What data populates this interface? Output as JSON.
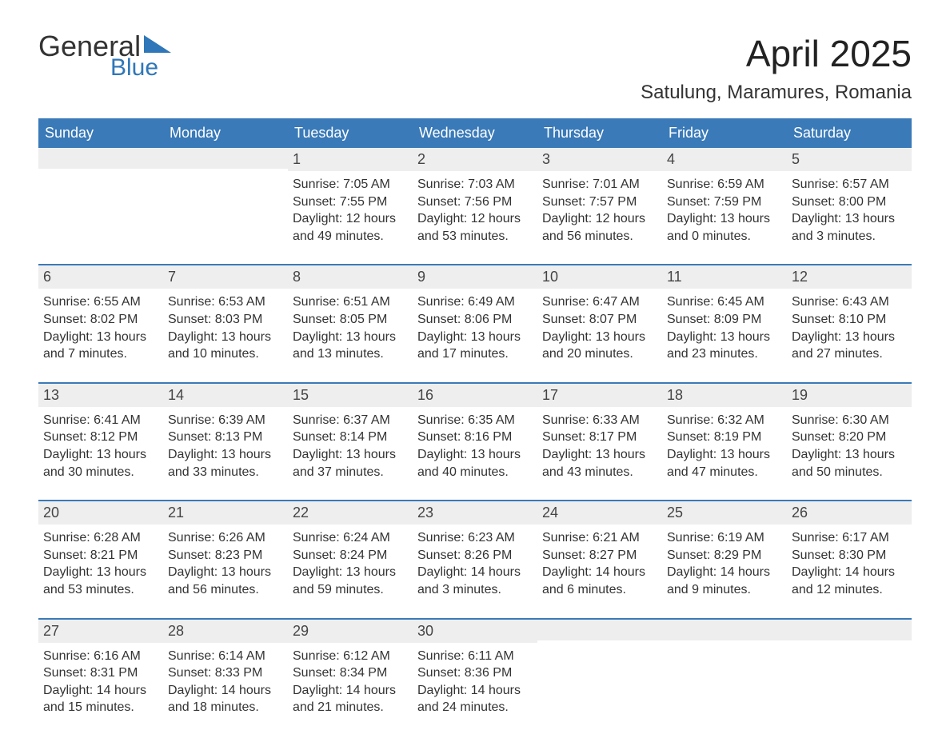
{
  "logo": {
    "general": "General",
    "blue": "Blue",
    "accent_color": "#2f77b8"
  },
  "title": "April 2025",
  "location": "Satulung, Maramures, Romania",
  "header_bg": "#3a7ab8",
  "header_text": "#ffffff",
  "row_rule_color": "#3a7ab8",
  "date_bar_bg": "#eeeeee",
  "body_bg": "#ffffff",
  "text_color": "#333333",
  "day_names": [
    "Sunday",
    "Monday",
    "Tuesday",
    "Wednesday",
    "Thursday",
    "Friday",
    "Saturday"
  ],
  "weeks": [
    [
      {
        "date": "",
        "sunrise": "",
        "sunset": "",
        "daylight": ""
      },
      {
        "date": "",
        "sunrise": "",
        "sunset": "",
        "daylight": ""
      },
      {
        "date": "1",
        "sunrise": "Sunrise: 7:05 AM",
        "sunset": "Sunset: 7:55 PM",
        "daylight": "Daylight: 12 hours and 49 minutes."
      },
      {
        "date": "2",
        "sunrise": "Sunrise: 7:03 AM",
        "sunset": "Sunset: 7:56 PM",
        "daylight": "Daylight: 12 hours and 53 minutes."
      },
      {
        "date": "3",
        "sunrise": "Sunrise: 7:01 AM",
        "sunset": "Sunset: 7:57 PM",
        "daylight": "Daylight: 12 hours and 56 minutes."
      },
      {
        "date": "4",
        "sunrise": "Sunrise: 6:59 AM",
        "sunset": "Sunset: 7:59 PM",
        "daylight": "Daylight: 13 hours and 0 minutes."
      },
      {
        "date": "5",
        "sunrise": "Sunrise: 6:57 AM",
        "sunset": "Sunset: 8:00 PM",
        "daylight": "Daylight: 13 hours and 3 minutes."
      }
    ],
    [
      {
        "date": "6",
        "sunrise": "Sunrise: 6:55 AM",
        "sunset": "Sunset: 8:02 PM",
        "daylight": "Daylight: 13 hours and 7 minutes."
      },
      {
        "date": "7",
        "sunrise": "Sunrise: 6:53 AM",
        "sunset": "Sunset: 8:03 PM",
        "daylight": "Daylight: 13 hours and 10 minutes."
      },
      {
        "date": "8",
        "sunrise": "Sunrise: 6:51 AM",
        "sunset": "Sunset: 8:05 PM",
        "daylight": "Daylight: 13 hours and 13 minutes."
      },
      {
        "date": "9",
        "sunrise": "Sunrise: 6:49 AM",
        "sunset": "Sunset: 8:06 PM",
        "daylight": "Daylight: 13 hours and 17 minutes."
      },
      {
        "date": "10",
        "sunrise": "Sunrise: 6:47 AM",
        "sunset": "Sunset: 8:07 PM",
        "daylight": "Daylight: 13 hours and 20 minutes."
      },
      {
        "date": "11",
        "sunrise": "Sunrise: 6:45 AM",
        "sunset": "Sunset: 8:09 PM",
        "daylight": "Daylight: 13 hours and 23 minutes."
      },
      {
        "date": "12",
        "sunrise": "Sunrise: 6:43 AM",
        "sunset": "Sunset: 8:10 PM",
        "daylight": "Daylight: 13 hours and 27 minutes."
      }
    ],
    [
      {
        "date": "13",
        "sunrise": "Sunrise: 6:41 AM",
        "sunset": "Sunset: 8:12 PM",
        "daylight": "Daylight: 13 hours and 30 minutes."
      },
      {
        "date": "14",
        "sunrise": "Sunrise: 6:39 AM",
        "sunset": "Sunset: 8:13 PM",
        "daylight": "Daylight: 13 hours and 33 minutes."
      },
      {
        "date": "15",
        "sunrise": "Sunrise: 6:37 AM",
        "sunset": "Sunset: 8:14 PM",
        "daylight": "Daylight: 13 hours and 37 minutes."
      },
      {
        "date": "16",
        "sunrise": "Sunrise: 6:35 AM",
        "sunset": "Sunset: 8:16 PM",
        "daylight": "Daylight: 13 hours and 40 minutes."
      },
      {
        "date": "17",
        "sunrise": "Sunrise: 6:33 AM",
        "sunset": "Sunset: 8:17 PM",
        "daylight": "Daylight: 13 hours and 43 minutes."
      },
      {
        "date": "18",
        "sunrise": "Sunrise: 6:32 AM",
        "sunset": "Sunset: 8:19 PM",
        "daylight": "Daylight: 13 hours and 47 minutes."
      },
      {
        "date": "19",
        "sunrise": "Sunrise: 6:30 AM",
        "sunset": "Sunset: 8:20 PM",
        "daylight": "Daylight: 13 hours and 50 minutes."
      }
    ],
    [
      {
        "date": "20",
        "sunrise": "Sunrise: 6:28 AM",
        "sunset": "Sunset: 8:21 PM",
        "daylight": "Daylight: 13 hours and 53 minutes."
      },
      {
        "date": "21",
        "sunrise": "Sunrise: 6:26 AM",
        "sunset": "Sunset: 8:23 PM",
        "daylight": "Daylight: 13 hours and 56 minutes."
      },
      {
        "date": "22",
        "sunrise": "Sunrise: 6:24 AM",
        "sunset": "Sunset: 8:24 PM",
        "daylight": "Daylight: 13 hours and 59 minutes."
      },
      {
        "date": "23",
        "sunrise": "Sunrise: 6:23 AM",
        "sunset": "Sunset: 8:26 PM",
        "daylight": "Daylight: 14 hours and 3 minutes."
      },
      {
        "date": "24",
        "sunrise": "Sunrise: 6:21 AM",
        "sunset": "Sunset: 8:27 PM",
        "daylight": "Daylight: 14 hours and 6 minutes."
      },
      {
        "date": "25",
        "sunrise": "Sunrise: 6:19 AM",
        "sunset": "Sunset: 8:29 PM",
        "daylight": "Daylight: 14 hours and 9 minutes."
      },
      {
        "date": "26",
        "sunrise": "Sunrise: 6:17 AM",
        "sunset": "Sunset: 8:30 PM",
        "daylight": "Daylight: 14 hours and 12 minutes."
      }
    ],
    [
      {
        "date": "27",
        "sunrise": "Sunrise: 6:16 AM",
        "sunset": "Sunset: 8:31 PM",
        "daylight": "Daylight: 14 hours and 15 minutes."
      },
      {
        "date": "28",
        "sunrise": "Sunrise: 6:14 AM",
        "sunset": "Sunset: 8:33 PM",
        "daylight": "Daylight: 14 hours and 18 minutes."
      },
      {
        "date": "29",
        "sunrise": "Sunrise: 6:12 AM",
        "sunset": "Sunset: 8:34 PM",
        "daylight": "Daylight: 14 hours and 21 minutes."
      },
      {
        "date": "30",
        "sunrise": "Sunrise: 6:11 AM",
        "sunset": "Sunset: 8:36 PM",
        "daylight": "Daylight: 14 hours and 24 minutes."
      },
      {
        "date": "",
        "sunrise": "",
        "sunset": "",
        "daylight": ""
      },
      {
        "date": "",
        "sunrise": "",
        "sunset": "",
        "daylight": ""
      },
      {
        "date": "",
        "sunrise": "",
        "sunset": "",
        "daylight": ""
      }
    ]
  ]
}
